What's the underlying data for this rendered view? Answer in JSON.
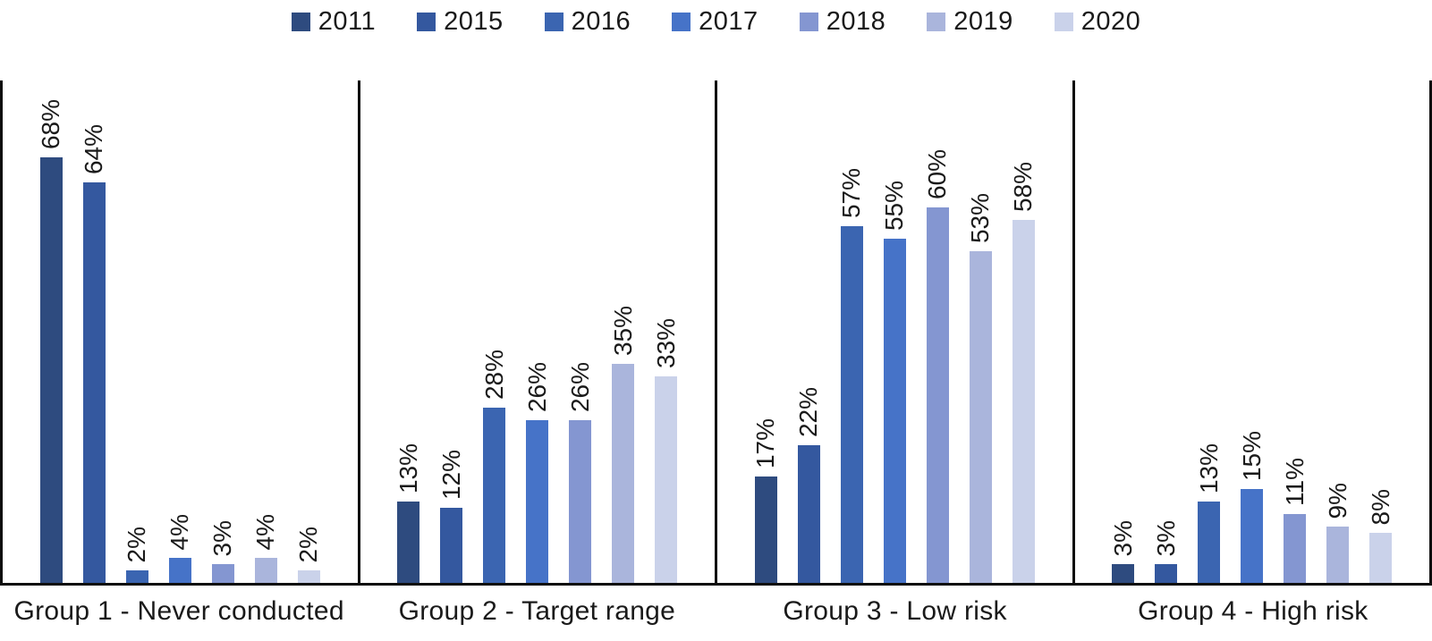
{
  "chart_data": {
    "type": "bar",
    "title": "",
    "xlabel": "",
    "ylabel": "",
    "value_suffix": "%",
    "ylim": [
      0,
      80
    ],
    "grid": false,
    "legend_position": "top",
    "bar_value_labels_rotated_90": true,
    "categories": [
      "Group 1 - Never conducted",
      "Group 2 - Target range",
      "Group 3 - Low risk",
      "Group 4 - High risk"
    ],
    "series": [
      {
        "name": "2011",
        "color": "#2E4B7F",
        "values": [
          68,
          13,
          17,
          3
        ]
      },
      {
        "name": "2015",
        "color": "#34589F",
        "values": [
          64,
          12,
          22,
          3
        ]
      },
      {
        "name": "2016",
        "color": "#3B65B1",
        "values": [
          2,
          28,
          57,
          13
        ]
      },
      {
        "name": "2017",
        "color": "#4673C8",
        "values": [
          4,
          26,
          55,
          15
        ]
      },
      {
        "name": "2018",
        "color": "#8496D1",
        "values": [
          3,
          26,
          60,
          11
        ]
      },
      {
        "name": "2019",
        "color": "#AAB5DC",
        "values": [
          4,
          35,
          53,
          9
        ]
      },
      {
        "name": "2020",
        "color": "#CAD2EA",
        "values": [
          2,
          33,
          58,
          8
        ]
      }
    ],
    "axis_color": "#0d0d0d",
    "text_color": "#1a1a1a"
  }
}
